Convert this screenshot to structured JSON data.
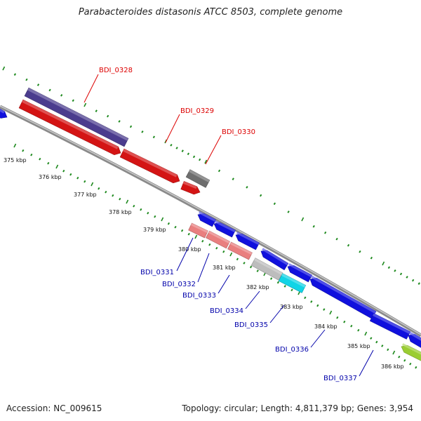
{
  "title": "Parabacteroides distasonis ATCC 8503, complete genome",
  "footer": {
    "accession": "Accession: NC_009615",
    "topology": "Topology: circular; Length: 4,811,379 bp; Genes: 3,954"
  },
  "colors": {
    "backbone": "#8a8a8a",
    "tick": "#1f8a1f",
    "forward_label": "#dd0000",
    "reverse_label": "#0000aa"
  },
  "scale_labels": [
    "375 kbp",
    "376 kbp",
    "377 kbp",
    "378 kbp",
    "379 kbp",
    "380 kbp",
    "381 kbp",
    "382 kbp",
    "383 kbp",
    "384 kbp",
    "385 kbp",
    "386 kbp"
  ],
  "forward_genes": [
    {
      "label": "BDI_0328",
      "color": "#d41414"
    },
    {
      "label": "BDI_0329",
      "color": "#d41414"
    },
    {
      "label": "BDI_0330",
      "color": "#d41414"
    }
  ],
  "reverse_genes": [
    {
      "label": "BDI_0331",
      "color": "#e97f7f"
    },
    {
      "label": "BDI_0332",
      "color": "#e97f7f"
    },
    {
      "label": "BDI_0333",
      "color": "#e97f7f"
    },
    {
      "label": "BDI_0334",
      "color": "#bdbdbd"
    },
    {
      "label": "BDI_0335",
      "color": "#11d4e6"
    },
    {
      "label": "BDI_0336",
      "color": "#1010dd"
    },
    {
      "label": "BDI_0337",
      "color": "#1010dd"
    }
  ]
}
